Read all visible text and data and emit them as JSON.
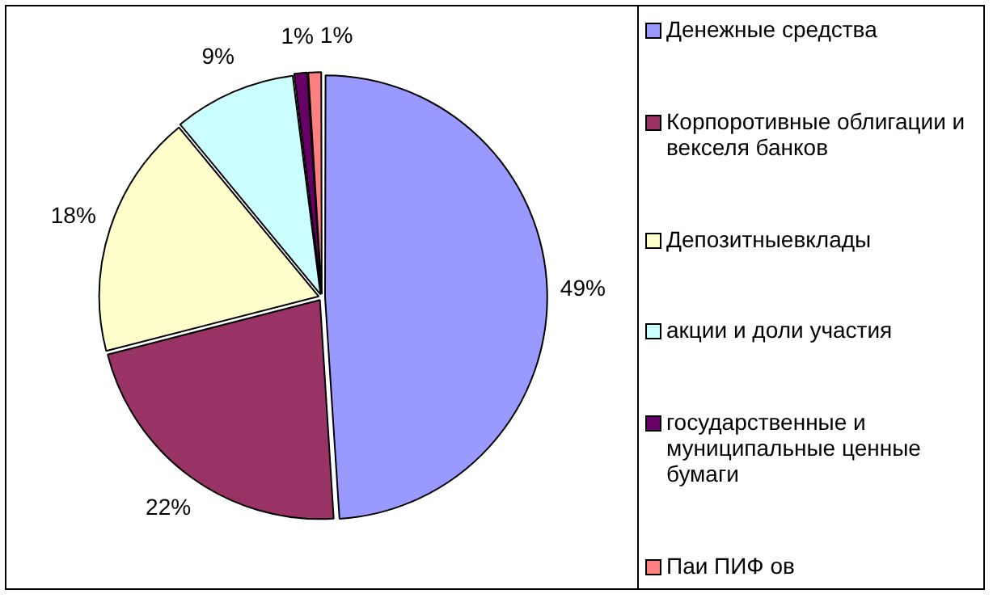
{
  "chart_data": {
    "type": "pie",
    "categories": [
      "Денежные средства",
      "Корпоротивные облигации и векселя банков",
      "Депозитныевклады",
      "акции и доли участия",
      "государственные и муниципальные ценные бумаги",
      "Паи ПИФ ов"
    ],
    "values": [
      49,
      22,
      18,
      9,
      1,
      1
    ],
    "colors": [
      "#9999ff",
      "#993366",
      "#ffffcc",
      "#ccffff",
      "#660066",
      "#ff8080"
    ],
    "value_labels": [
      "49%",
      "22%",
      "18%",
      "9%",
      "1%",
      "1%"
    ],
    "legend": "right"
  }
}
